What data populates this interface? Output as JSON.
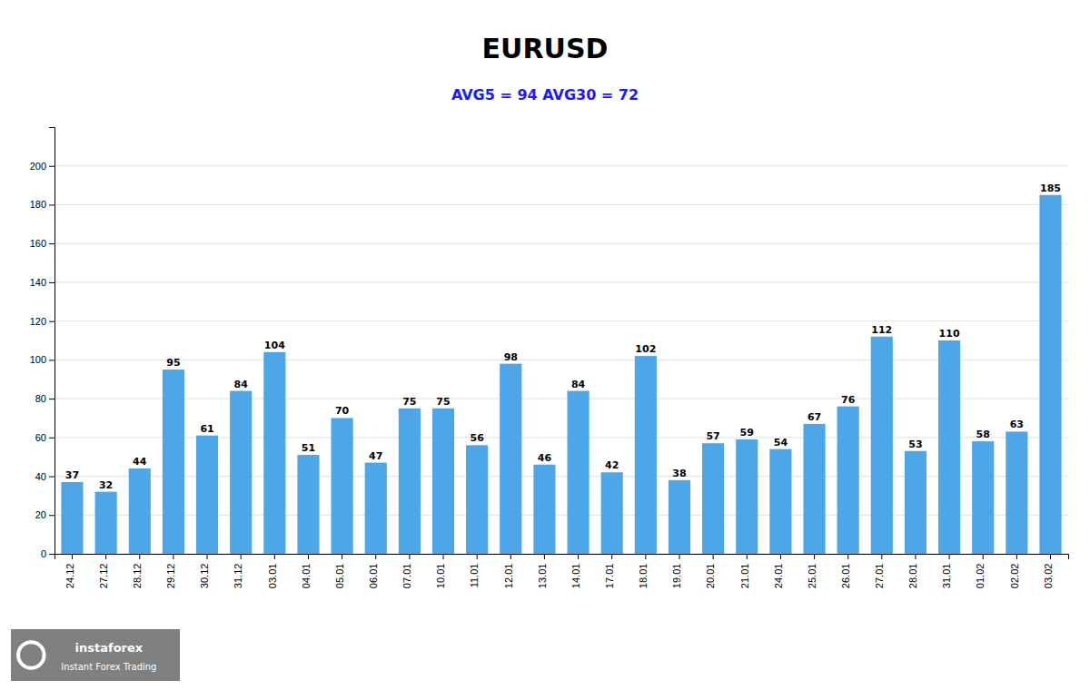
{
  "chart_data": {
    "type": "bar",
    "title": "EURUSD",
    "subtitle": "AVG5 = 94 AVG30 = 72",
    "categories": [
      "24.12",
      "27.12",
      "28.12",
      "29.12",
      "30.12",
      "31.12",
      "03.01",
      "04.01",
      "05.01",
      "06.01",
      "07.01",
      "10.01",
      "11.01",
      "12.01",
      "13.01",
      "14.01",
      "17.01",
      "18.01",
      "19.01",
      "20.01",
      "21.01",
      "24.01",
      "25.01",
      "26.01",
      "27.01",
      "28.01",
      "31.01",
      "01.02",
      "02.02",
      "03.02"
    ],
    "values": [
      37,
      32,
      44,
      95,
      61,
      84,
      104,
      51,
      70,
      47,
      75,
      75,
      56,
      98,
      46,
      84,
      42,
      102,
      38,
      57,
      59,
      54,
      67,
      76,
      112,
      53,
      110,
      58,
      63,
      185
    ],
    "color": "#4da6e8",
    "ylim": [
      0,
      220
    ],
    "yticks": [
      0,
      20,
      40,
      60,
      80,
      100,
      120,
      140,
      160,
      180,
      200
    ],
    "grid": true,
    "data_labels": true,
    "annotations": [
      "instaforex",
      "Instant Forex Trading"
    ]
  }
}
